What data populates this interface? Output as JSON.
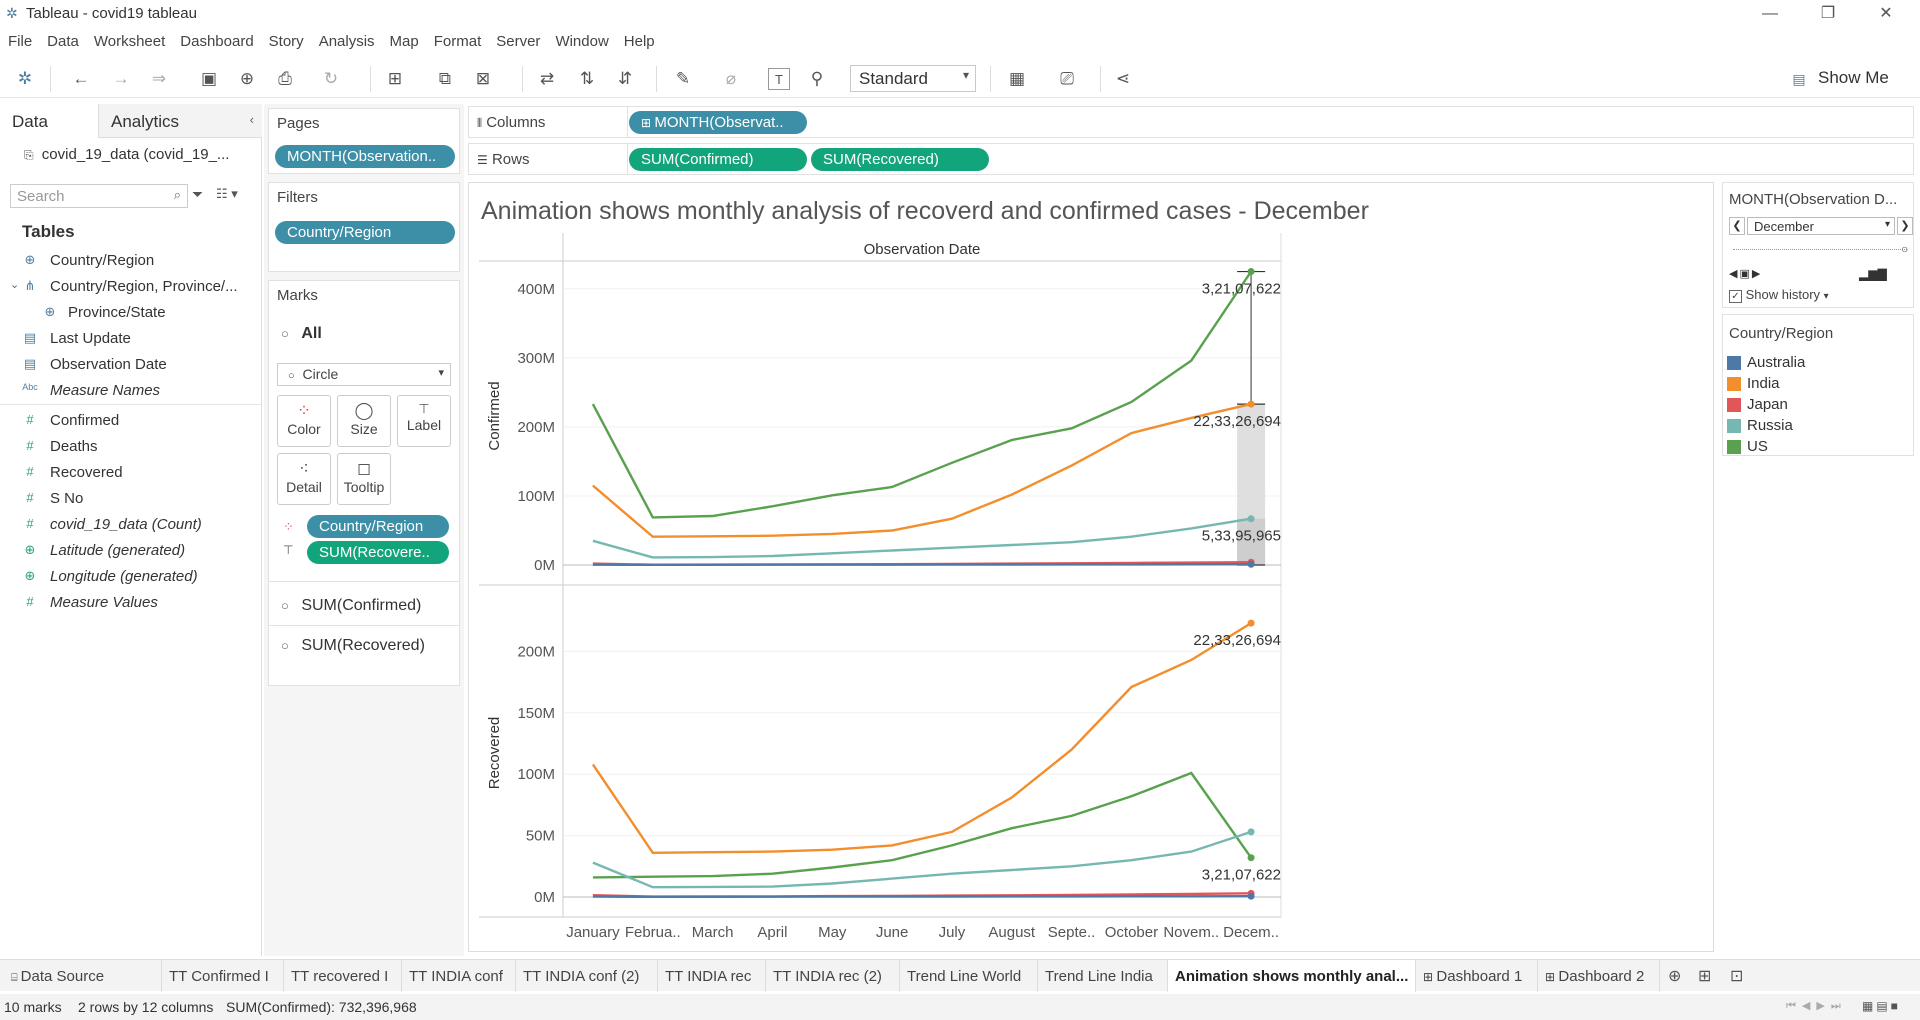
{
  "window": {
    "title": "Tableau - covid19 tableau"
  },
  "menu": [
    "File",
    "Data",
    "Worksheet",
    "Dashboard",
    "Story",
    "Analysis",
    "Map",
    "Format",
    "Server",
    "Window",
    "Help"
  ],
  "toolbar": {
    "fit_select": "Standard",
    "show_me": "Show Me"
  },
  "data_pane": {
    "tabs": [
      "Data",
      "Analytics"
    ],
    "datasource": "covid_19_data (covid_19_...",
    "search_placeholder": "Search",
    "tables_header": "Tables",
    "fields": [
      {
        "icon": "globe-icon",
        "label": "Country/Region",
        "kind": "dim"
      },
      {
        "icon": "hierarchy-icon",
        "label": "Country/Region, Province/...",
        "kind": "dim"
      },
      {
        "icon": "globe-icon",
        "label": "Province/State",
        "kind": "dim"
      },
      {
        "icon": "calendar-icon",
        "label": "Last Update",
        "kind": "dim"
      },
      {
        "icon": "calendar-icon",
        "label": "Observation Date",
        "kind": "dim"
      },
      {
        "icon": "abc-icon",
        "label": "Measure Names",
        "kind": "dim-italic"
      },
      {
        "icon": "hash-icon",
        "label": "Confirmed",
        "kind": "meas"
      },
      {
        "icon": "hash-icon",
        "label": "Deaths",
        "kind": "meas"
      },
      {
        "icon": "hash-icon",
        "label": "Recovered",
        "kind": "meas"
      },
      {
        "icon": "hash-icon",
        "label": "S No",
        "kind": "meas"
      },
      {
        "icon": "hash-icon",
        "label": "covid_19_data (Count)",
        "kind": "meas-italic"
      },
      {
        "icon": "globe-icon",
        "label": "Latitude (generated)",
        "kind": "meas-italic"
      },
      {
        "icon": "globe-icon",
        "label": "Longitude (generated)",
        "kind": "meas-italic"
      },
      {
        "icon": "hash-icon",
        "label": "Measure Values",
        "kind": "meas-italic"
      }
    ]
  },
  "pages": {
    "title": "Pages",
    "pill": "MONTH(Observation.."
  },
  "filters": {
    "title": "Filters",
    "pill": "Country/Region"
  },
  "marks": {
    "title": "Marks",
    "all": "All",
    "type": "Circle",
    "buttons": [
      "Color",
      "Size",
      "Label",
      "Detail",
      "Tooltip"
    ],
    "pills": [
      "Country/Region",
      "SUM(Recovere.."
    ],
    "measures": [
      "SUM(Confirmed)",
      "SUM(Recovered)"
    ]
  },
  "columns": {
    "label": "Columns",
    "pill": "MONTH(Observat.."
  },
  "rows": {
    "label": "Rows",
    "pills": [
      "SUM(Confirmed)",
      "SUM(Recovered)"
    ]
  },
  "viz": {
    "title": "Animation shows monthly analysis of recoverd and confirmed cases - December",
    "header": "Observation Date"
  },
  "page_control": {
    "title": "MONTH(Observation D...",
    "value": "December",
    "show_history": "Show history"
  },
  "legend": {
    "title": "Country/Region",
    "items": [
      {
        "label": "Australia",
        "color": "#4e79a7"
      },
      {
        "label": "India",
        "color": "#f28e2b"
      },
      {
        "label": "Japan",
        "color": "#e15759"
      },
      {
        "label": "Russia",
        "color": "#76b7b2"
      },
      {
        "label": "US",
        "color": "#59a14f"
      }
    ]
  },
  "chart_data": [
    {
      "type": "line",
      "xlabel": "",
      "ylabel": "Confirmed",
      "x": [
        "January",
        "Februa..",
        "March",
        "April",
        "May",
        "June",
        "July",
        "August",
        "Septe..",
        "October",
        "Novem..",
        "Decem.."
      ],
      "ylim": [
        0,
        420000000
      ],
      "yticks": [
        "0M",
        "100M",
        "200M",
        "300M",
        "400M"
      ],
      "series": [
        {
          "name": "US",
          "values": [
            233000000,
            69000000,
            71000000,
            85000000,
            101000000,
            113000000,
            148000000,
            181000000,
            198000000,
            236000000,
            296000000,
            425000000
          ]
        },
        {
          "name": "India",
          "values": [
            115000000,
            41000000,
            41500000,
            42500000,
            45000000,
            50000000,
            67000000,
            102000000,
            144000000,
            191000000,
            213000000,
            233000000
          ]
        },
        {
          "name": "Russia",
          "values": [
            35000000,
            11000000,
            11500000,
            13000000,
            17000000,
            21000000,
            25000000,
            29000000,
            33000000,
            41000000,
            53000000,
            67000000
          ]
        },
        {
          "name": "Japan",
          "values": [
            2000000,
            500000,
            600000,
            800000,
            1000000,
            1200000,
            1500000,
            2000000,
            2500000,
            3000000,
            3500000,
            4000000
          ]
        },
        {
          "name": "Australia",
          "values": [
            500000,
            300000,
            300000,
            400000,
            400000,
            500000,
            600000,
            700000,
            800000,
            900000,
            1000000,
            1100000
          ]
        }
      ],
      "annotations": [
        "3,21,07,622",
        "22,33,26,694",
        "5,33,95,965"
      ]
    },
    {
      "type": "line",
      "xlabel": "",
      "ylabel": "Recovered",
      "x": [
        "January",
        "Februa..",
        "March",
        "April",
        "May",
        "June",
        "July",
        "August",
        "Septe..",
        "October",
        "Novem..",
        "Decem.."
      ],
      "ylim": [
        0,
        225000000
      ],
      "yticks": [
        "0M",
        "50M",
        "100M",
        "150M",
        "200M"
      ],
      "series": [
        {
          "name": "India",
          "values": [
            108000000,
            36000000,
            36500000,
            37000000,
            38500000,
            42000000,
            53000000,
            81000000,
            120000000,
            171000000,
            193000000,
            223000000
          ]
        },
        {
          "name": "US",
          "values": [
            16000000,
            16500000,
            17000000,
            19000000,
            24000000,
            30000000,
            42000000,
            56000000,
            66000000,
            82000000,
            101000000,
            32000000
          ]
        },
        {
          "name": "Russia",
          "values": [
            28000000,
            8000000,
            8200000,
            8500000,
            11000000,
            15000000,
            19000000,
            22000000,
            25000000,
            30000000,
            37000000,
            53000000
          ]
        },
        {
          "name": "Japan",
          "values": [
            1500000,
            300000,
            400000,
            500000,
            700000,
            900000,
            1100000,
            1400000,
            1700000,
            2000000,
            2500000,
            3000000
          ]
        },
        {
          "name": "Australia",
          "values": [
            300000,
            200000,
            200000,
            250000,
            300000,
            350000,
            400000,
            450000,
            500000,
            550000,
            600000,
            650000
          ]
        }
      ],
      "annotations": [
        "22,33,26,694",
        "3,21,07,622"
      ]
    }
  ],
  "sheet_tabs": [
    "Data Source",
    "TT Confirmed I",
    "TT recovered I",
    "TT INDIA conf",
    "TT INDIA conf (2)",
    "TT INDIA rec",
    "TT INDIA rec (2)",
    "Trend Line World",
    "Trend Line India",
    "Animation shows monthly anal...",
    "Dashboard 1",
    "Dashboard 2"
  ],
  "status": {
    "marks": "10 marks",
    "dims": "2 rows by 12 columns",
    "sum": "SUM(Confirmed): 732,396,968"
  }
}
